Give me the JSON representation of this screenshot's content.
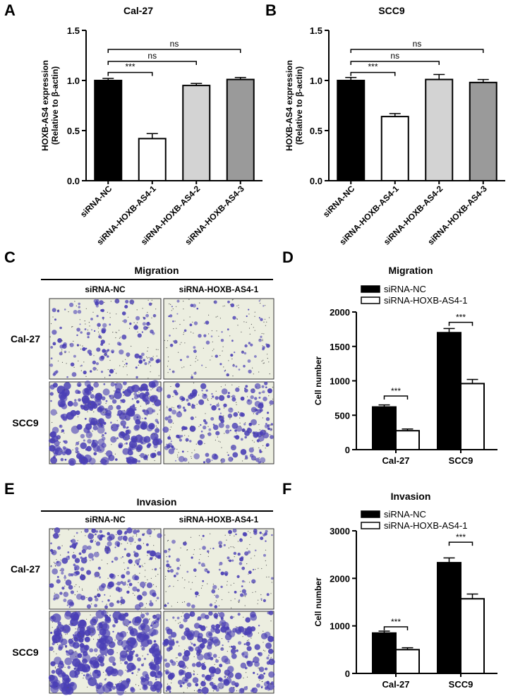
{
  "panels": {
    "A": "A",
    "B": "B",
    "C": "C",
    "D": "D",
    "E": "E",
    "F": "F"
  },
  "colors": {
    "siRNA-NC": "#000000",
    "siRNA-HOXB-AS4-1": "#ffffff",
    "siRNA-HOXB-AS4-2": "#d3d3d3",
    "siRNA-HOXB-AS4-3": "#9a9a9a",
    "stain": "#4a3fb5",
    "membrane": "#eceee0"
  },
  "chart_data": [
    {
      "id": "A",
      "type": "bar",
      "title": "Cal-27",
      "ylabel_line1": "HOXB-AS4 expression",
      "ylabel_line2": "(Relative to β-actin)",
      "ylim": [
        0,
        1.5
      ],
      "yticks": [
        "0.0",
        "0.5",
        "1.0",
        "1.5"
      ],
      "ytick_values": [
        0,
        0.5,
        1.0,
        1.5
      ],
      "categories": [
        "siRNA-NC",
        "siRNA-HOXB-AS4-1",
        "siRNA-HOXB-AS4-2",
        "siRNA-HOXB-AS4-3"
      ],
      "values": [
        1.0,
        0.42,
        0.95,
        1.01
      ],
      "errors": [
        0.02,
        0.05,
        0.02,
        0.02
      ],
      "significance": [
        {
          "from": 0,
          "to": 1,
          "label": "***",
          "level": 1.08
        },
        {
          "from": 0,
          "to": 2,
          "label": "ns",
          "level": 1.19
        },
        {
          "from": 0,
          "to": 3,
          "label": "ns",
          "level": 1.31
        }
      ]
    },
    {
      "id": "B",
      "type": "bar",
      "title": "SCC9",
      "ylabel_line1": "HOXB-AS4 expression",
      "ylabel_line2": "(Relative to β-actin)",
      "ylim": [
        0,
        1.5
      ],
      "yticks": [
        "0.0",
        "0.5",
        "1.0",
        "1.5"
      ],
      "ytick_values": [
        0,
        0.5,
        1.0,
        1.5
      ],
      "categories": [
        "siRNA-NC",
        "siRNA-HOXB-AS4-1",
        "siRNA-HOXB-AS4-2",
        "siRNA-HOXB-AS4-3"
      ],
      "values": [
        1.0,
        0.64,
        1.01,
        0.98
      ],
      "errors": [
        0.03,
        0.03,
        0.05,
        0.03
      ],
      "significance": [
        {
          "from": 0,
          "to": 1,
          "label": "***",
          "level": 1.08
        },
        {
          "from": 0,
          "to": 2,
          "label": "ns",
          "level": 1.19
        },
        {
          "from": 0,
          "to": 3,
          "label": "ns",
          "level": 1.31
        }
      ]
    },
    {
      "id": "D",
      "type": "bar",
      "title": "Migration",
      "ylabel": "Cell number",
      "ylim": [
        0,
        2000
      ],
      "yticks": [
        "0",
        "500",
        "1000",
        "1500",
        "2000"
      ],
      "ytick_values": [
        0,
        500,
        1000,
        1500,
        2000
      ],
      "categories": [
        "Cal-27",
        "SCC9"
      ],
      "legend_position": "top-left",
      "series": [
        {
          "name": "siRNA-NC",
          "values": [
            620,
            1700
          ],
          "errors": [
            30,
            60
          ]
        },
        {
          "name": "siRNA-HOXB-AS4-1",
          "values": [
            275,
            960
          ],
          "errors": [
            25,
            60
          ]
        }
      ],
      "significance": [
        {
          "group": 0,
          "label": "***",
          "level": 780
        },
        {
          "group": 1,
          "label": "***",
          "level": 1850
        }
      ]
    },
    {
      "id": "F",
      "type": "bar",
      "title": "Invasion",
      "ylabel": "Cell number",
      "ylim": [
        0,
        3000
      ],
      "yticks": [
        "0",
        "1000",
        "2000",
        "3000"
      ],
      "ytick_values": [
        0,
        1000,
        2000,
        3000
      ],
      "categories": [
        "Cal-27",
        "SCC9"
      ],
      "legend_position": "top-left",
      "series": [
        {
          "name": "siRNA-NC",
          "values": [
            850,
            2330
          ],
          "errors": [
            40,
            100
          ]
        },
        {
          "name": "siRNA-HOXB-AS4-1",
          "values": [
            500,
            1570
          ],
          "errors": [
            40,
            100
          ]
        }
      ],
      "significance": [
        {
          "group": 0,
          "label": "***",
          "level": 980
        },
        {
          "group": 1,
          "label": "***",
          "level": 2760
        }
      ]
    }
  ],
  "micrographs": [
    {
      "id": "C",
      "title": "Migration",
      "columns": [
        "siRNA-NC",
        "siRNA-HOXB-AS4-1"
      ],
      "rows": [
        "Cal-27",
        "SCC9"
      ],
      "density": [
        [
          0.25,
          0.08
        ],
        [
          0.75,
          0.45
        ]
      ]
    },
    {
      "id": "E",
      "title": "Invasion",
      "columns": [
        "siRNA-NC",
        "siRNA-HOXB-AS4-1"
      ],
      "rows": [
        "Cal-27",
        "SCC9"
      ],
      "density": [
        [
          0.45,
          0.15
        ],
        [
          0.9,
          0.6
        ]
      ]
    }
  ]
}
